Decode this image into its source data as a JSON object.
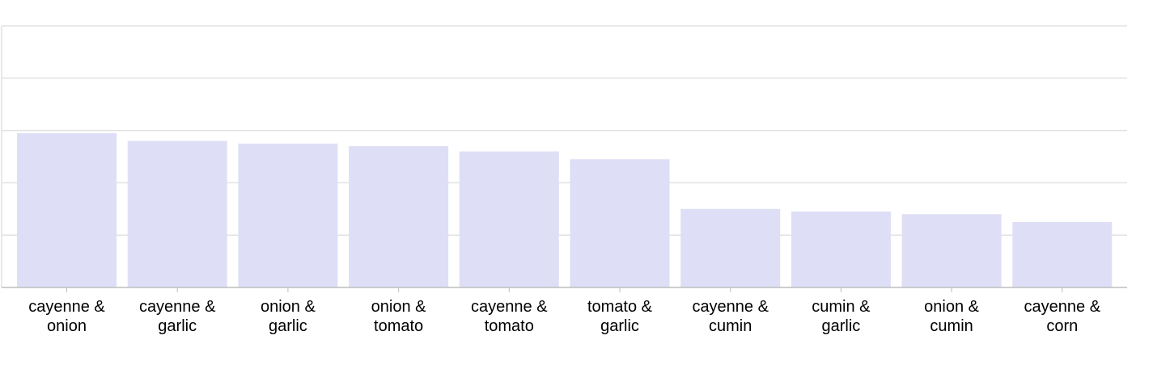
{
  "chart_data": {
    "type": "bar",
    "title": "",
    "xlabel": "",
    "ylabel": "",
    "ylim": [
      0,
      5
    ],
    "grid": true,
    "bar_color": "#dedff6",
    "categories": [
      [
        "cayenne &",
        "onion"
      ],
      [
        "cayenne &",
        "garlic"
      ],
      [
        "onion &",
        "garlic"
      ],
      [
        "onion &",
        "tomato"
      ],
      [
        "cayenne &",
        "tomato"
      ],
      [
        "tomato &",
        "garlic"
      ],
      [
        "cayenne &",
        "cumin"
      ],
      [
        "cumin &",
        "garlic"
      ],
      [
        "onion &",
        "cumin"
      ],
      [
        "cayenne &",
        "corn"
      ]
    ],
    "values": [
      2.95,
      2.8,
      2.75,
      2.7,
      2.6,
      2.45,
      1.5,
      1.45,
      1.4,
      1.25
    ]
  }
}
